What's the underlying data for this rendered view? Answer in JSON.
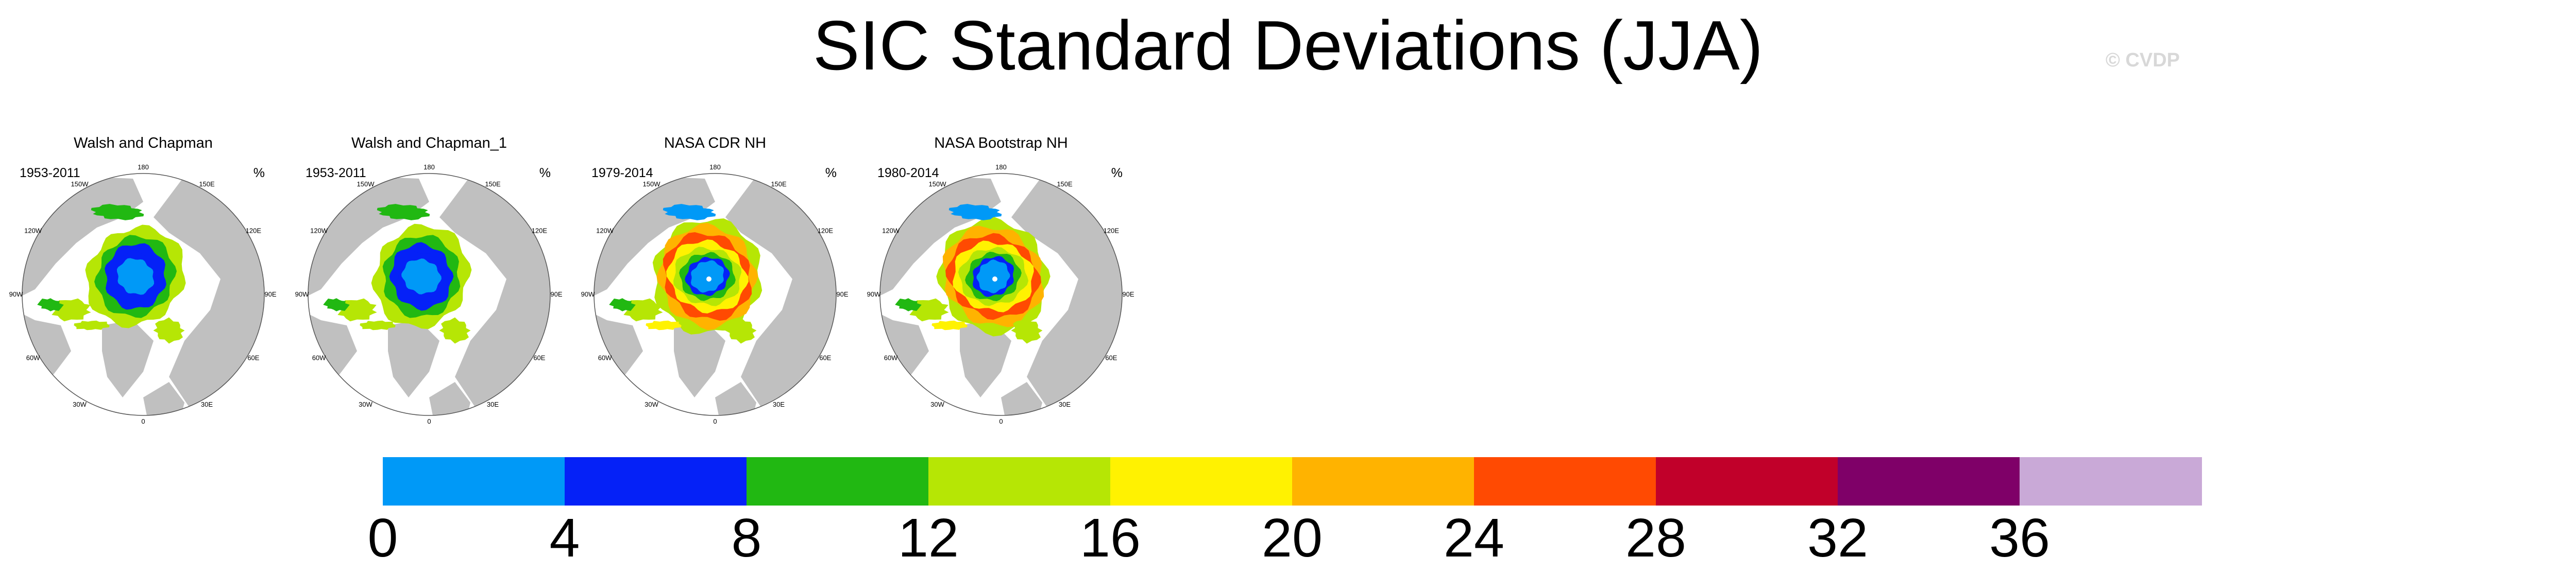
{
  "title": "SIC Standard Deviations (JJA)",
  "credit": "© CVDP",
  "panels": [
    {
      "title": "Walsh and Chapman",
      "years": "1953-2011",
      "unit": "%",
      "style": "wc"
    },
    {
      "title": "Walsh and Chapman_1",
      "years": "1953-2011",
      "unit": "%",
      "style": "wc"
    },
    {
      "title": "NASA CDR NH",
      "years": "1979-2014",
      "unit": "%",
      "style": "nasa"
    },
    {
      "title": "NASA Bootstrap NH",
      "years": "1980-2014",
      "unit": "%",
      "style": "nasa"
    }
  ],
  "longitude_labels": [
    "180",
    "150E",
    "120E",
    "90E",
    "60E",
    "30E",
    "0",
    "30W",
    "60W",
    "90W",
    "120W",
    "150W"
  ],
  "colorbar": {
    "levels": [
      "0",
      "4",
      "8",
      "12",
      "16",
      "20",
      "24",
      "28",
      "32",
      "36"
    ],
    "colors": [
      "#0099f7",
      "#0521f7",
      "#21b812",
      "#b6e605",
      "#fff201",
      "#ffb300",
      "#ff4a02",
      "#c1002a",
      "#7f0068",
      "#c9a9d7"
    ]
  },
  "chart_data": {
    "type": "heatmap",
    "title": "SIC Standard Deviations (JJA)",
    "variable": "sea ice concentration standard deviation",
    "unit": "%",
    "projection": "north polar stereographic",
    "panels": [
      {
        "name": "Walsh and Chapman",
        "period": "1953-2011"
      },
      {
        "name": "Walsh and Chapman_1",
        "period": "1953-2011"
      },
      {
        "name": "NASA CDR NH",
        "period": "1979-2014"
      },
      {
        "name": "NASA Bootstrap NH",
        "period": "1980-2014"
      }
    ],
    "levels": [
      0,
      4,
      8,
      12,
      16,
      20,
      24,
      28,
      32,
      36
    ],
    "colors": [
      "#0099f7",
      "#0521f7",
      "#21b812",
      "#b6e605",
      "#fff201",
      "#ffb300",
      "#ff4a02",
      "#c1002a",
      "#7f0068",
      "#c9a9d7"
    ],
    "land_color": "#c0c0c0"
  }
}
